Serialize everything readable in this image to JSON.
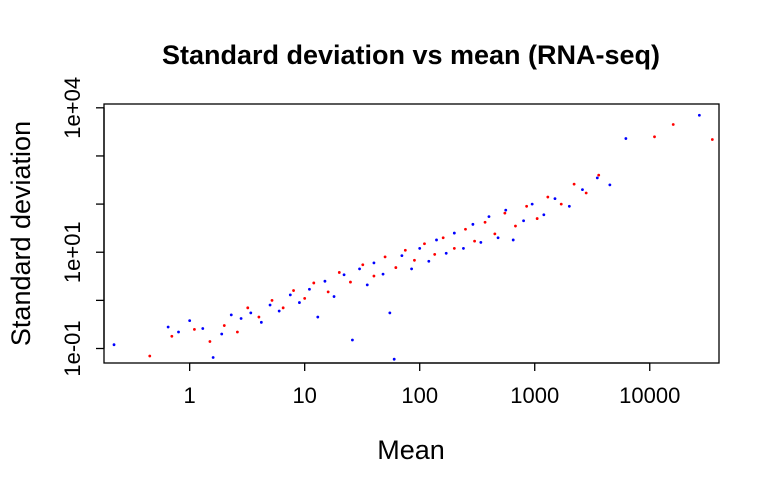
{
  "chart_data": {
    "type": "scatter",
    "title": "Standard deviation vs mean (RNA-seq)",
    "xlabel": "Mean",
    "ylabel": "Standard deviation",
    "x_scale": "log10",
    "y_scale": "log10",
    "xlim": [
      0.18,
      40000
    ],
    "ylim": [
      0.05,
      12000
    ],
    "x_ticks": [
      {
        "value": 1,
        "label": "1"
      },
      {
        "value": 10,
        "label": "10"
      },
      {
        "value": 100,
        "label": "100"
      },
      {
        "value": 1000,
        "label": "1000"
      },
      {
        "value": 10000,
        "label": "10000"
      }
    ],
    "y_ticks": [
      {
        "value": 0.1,
        "label": "1e-01"
      },
      {
        "value": 1,
        "label": ""
      },
      {
        "value": 10,
        "label": "1e+01"
      },
      {
        "value": 100,
        "label": ""
      },
      {
        "value": 1000,
        "label": ""
      },
      {
        "value": 10000,
        "label": "1e+04"
      }
    ],
    "grid": false,
    "legend": "none",
    "colors": {
      "series_a": "#0000ff",
      "series_b": "#ff0000",
      "axis": "#000000"
    },
    "series": [
      {
        "color": "#0000ff",
        "points": [
          [
            0.22,
            0.12
          ],
          [
            0.65,
            0.28
          ],
          [
            0.8,
            0.22
          ],
          [
            1.0,
            0.38
          ],
          [
            1.3,
            0.26
          ],
          [
            1.6,
            0.065
          ],
          [
            1.9,
            0.2
          ],
          [
            2.3,
            0.5
          ],
          [
            2.8,
            0.42
          ],
          [
            3.4,
            0.55
          ],
          [
            4.2,
            0.35
          ],
          [
            5.0,
            0.8
          ],
          [
            6.0,
            0.6
          ],
          [
            7.5,
            1.3
          ],
          [
            9.0,
            0.9
          ],
          [
            11,
            1.7
          ],
          [
            13,
            0.45
          ],
          [
            15,
            2.5
          ],
          [
            18,
            1.2
          ],
          [
            22,
            3.4
          ],
          [
            26,
            0.15
          ],
          [
            30,
            4.5
          ],
          [
            35,
            2.1
          ],
          [
            40,
            6.0
          ],
          [
            48,
            3.5
          ],
          [
            55,
            0.55
          ],
          [
            60,
            0.06
          ],
          [
            70,
            8.5
          ],
          [
            85,
            4.5
          ],
          [
            100,
            12
          ],
          [
            120,
            6.5
          ],
          [
            140,
            18
          ],
          [
            170,
            9.5
          ],
          [
            200,
            25
          ],
          [
            240,
            12
          ],
          [
            290,
            38
          ],
          [
            340,
            16
          ],
          [
            400,
            55
          ],
          [
            480,
            20
          ],
          [
            560,
            75
          ],
          [
            650,
            18
          ],
          [
            800,
            45
          ],
          [
            950,
            100
          ],
          [
            1200,
            60
          ],
          [
            1500,
            130
          ],
          [
            2000,
            90
          ],
          [
            2600,
            200
          ],
          [
            3500,
            350
          ],
          [
            4500,
            250
          ],
          [
            6200,
            2300
          ],
          [
            27000,
            7000
          ]
        ]
      },
      {
        "color": "#ff0000",
        "points": [
          [
            0.45,
            0.07
          ],
          [
            0.7,
            0.18
          ],
          [
            1.1,
            0.25
          ],
          [
            1.5,
            0.14
          ],
          [
            2.0,
            0.3
          ],
          [
            2.6,
            0.22
          ],
          [
            3.2,
            0.7
          ],
          [
            4.0,
            0.45
          ],
          [
            5.2,
            1.0
          ],
          [
            6.5,
            0.7
          ],
          [
            8.0,
            1.6
          ],
          [
            10,
            1.1
          ],
          [
            12,
            2.3
          ],
          [
            16,
            1.5
          ],
          [
            20,
            3.8
          ],
          [
            25,
            2.4
          ],
          [
            32,
            5.5
          ],
          [
            40,
            3.2
          ],
          [
            50,
            8.0
          ],
          [
            62,
            4.8
          ],
          [
            75,
            11
          ],
          [
            90,
            6.8
          ],
          [
            110,
            15
          ],
          [
            135,
            9.0
          ],
          [
            160,
            20
          ],
          [
            200,
            12
          ],
          [
            250,
            30
          ],
          [
            300,
            17
          ],
          [
            370,
            42
          ],
          [
            450,
            24
          ],
          [
            550,
            65
          ],
          [
            680,
            35
          ],
          [
            850,
            90
          ],
          [
            1050,
            50
          ],
          [
            1300,
            140
          ],
          [
            1700,
            100
          ],
          [
            2200,
            260
          ],
          [
            2800,
            170
          ],
          [
            3600,
            400
          ],
          [
            11000,
            2500
          ],
          [
            16000,
            4500
          ],
          [
            35000,
            2200
          ]
        ]
      }
    ]
  }
}
